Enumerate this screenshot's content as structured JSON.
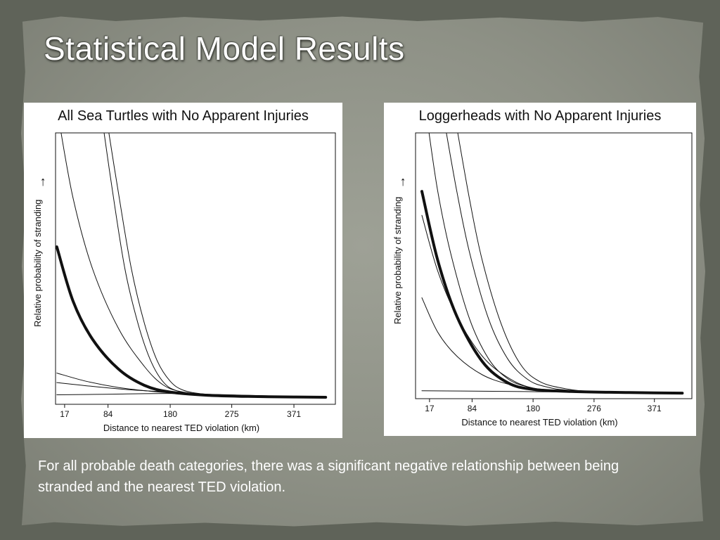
{
  "slide": {
    "title": "Statistical Model Results",
    "body_text": "For all probable death categories, there was a significant negative relationship between being stranded and the nearest TED violation."
  },
  "colors": {
    "background": "#5f6359",
    "paper": "#8e9186",
    "title_text": "#ffffff",
    "curve": "#111111"
  },
  "chart_data": [
    {
      "type": "line",
      "title": "All Sea Turtles with No Apparent Injuries",
      "xlabel": "Distance to nearest TED violation (km)",
      "ylabel": "Relative probability of stranding",
      "ylabel_arrow": "→",
      "xticks": [
        17,
        84,
        180,
        275,
        371
      ],
      "xlim": [
        3,
        435
      ],
      "ylim": [
        0,
        1
      ],
      "grid": false,
      "legend": "none",
      "series": [
        {
          "highlight": true,
          "x": [
            5,
            30,
            60,
            100,
            140,
            180,
            240,
            300,
            371,
            420
          ],
          "y": [
            0.58,
            0.38,
            0.24,
            0.13,
            0.07,
            0.045,
            0.033,
            0.029,
            0.027,
            0.026
          ]
        },
        {
          "highlight": false,
          "x": [
            8,
            30,
            60,
            100,
            140,
            170,
            200,
            240,
            300,
            371,
            420
          ],
          "y": [
            1.05,
            0.76,
            0.5,
            0.28,
            0.14,
            0.07,
            0.045,
            0.035,
            0.03,
            0.027,
            0.026
          ]
        },
        {
          "highlight": false,
          "x": [
            75,
            90,
            110,
            130,
            150,
            170,
            190,
            220,
            260,
            320,
            420
          ],
          "y": [
            1.05,
            0.8,
            0.5,
            0.3,
            0.16,
            0.08,
            0.05,
            0.038,
            0.032,
            0.028,
            0.026
          ]
        },
        {
          "highlight": false,
          "x": [
            82,
            100,
            120,
            140,
            160,
            180,
            200,
            230,
            270,
            330,
            420
          ],
          "y": [
            1.05,
            0.78,
            0.5,
            0.3,
            0.16,
            0.085,
            0.052,
            0.038,
            0.032,
            0.028,
            0.026
          ]
        },
        {
          "highlight": false,
          "x": [
            5,
            50,
            100,
            150,
            180,
            240,
            420
          ],
          "y": [
            0.115,
            0.085,
            0.062,
            0.048,
            0.042,
            0.034,
            0.026
          ]
        },
        {
          "highlight": false,
          "x": [
            5,
            60,
            120,
            180,
            240,
            420
          ],
          "y": [
            0.08,
            0.066,
            0.053,
            0.045,
            0.037,
            0.026
          ]
        },
        {
          "highlight": false,
          "x": [
            5,
            80,
            180,
            260,
            420
          ],
          "y": [
            0.035,
            0.037,
            0.04,
            0.034,
            0.026
          ]
        }
      ]
    },
    {
      "type": "line",
      "title": "Loggerheads with No Apparent Injuries",
      "xlabel": "Distance to nearest TED violation (km)",
      "ylabel": "Relative probability of stranding",
      "ylabel_arrow": "→",
      "xticks": [
        17,
        84,
        180,
        276,
        371
      ],
      "xlim": [
        -5,
        430
      ],
      "ylim": [
        0,
        1
      ],
      "grid": false,
      "legend": "none",
      "series": [
        {
          "highlight": true,
          "x": [
            5,
            30,
            60,
            100,
            140,
            180,
            240,
            300,
            371,
            415
          ],
          "y": [
            0.78,
            0.52,
            0.31,
            0.14,
            0.06,
            0.035,
            0.027,
            0.024,
            0.022,
            0.021
          ]
        },
        {
          "highlight": false,
          "x": [
            5,
            30,
            60,
            100,
            140,
            180,
            240,
            300,
            415
          ],
          "y": [
            0.69,
            0.48,
            0.31,
            0.16,
            0.08,
            0.04,
            0.03,
            0.025,
            0.021
          ]
        },
        {
          "highlight": false,
          "x": [
            5,
            30,
            60,
            100,
            140,
            180,
            240,
            300,
            415
          ],
          "y": [
            0.38,
            0.25,
            0.16,
            0.09,
            0.055,
            0.036,
            0.028,
            0.024,
            0.021
          ]
        },
        {
          "highlight": false,
          "x": [
            15,
            30,
            50,
            80,
            110,
            140,
            170,
            200,
            250,
            415
          ],
          "y": [
            1.02,
            0.78,
            0.55,
            0.3,
            0.15,
            0.075,
            0.045,
            0.033,
            0.026,
            0.021
          ]
        },
        {
          "highlight": false,
          "x": [
            42,
            60,
            80,
            110,
            140,
            170,
            200,
            250,
            415
          ],
          "y": [
            1.02,
            0.78,
            0.55,
            0.3,
            0.15,
            0.075,
            0.045,
            0.03,
            0.021
          ]
        },
        {
          "highlight": false,
          "x": [
            60,
            80,
            100,
            130,
            160,
            190,
            230,
            280,
            415
          ],
          "y": [
            1.02,
            0.75,
            0.52,
            0.28,
            0.13,
            0.065,
            0.038,
            0.027,
            0.021
          ]
        },
        {
          "highlight": false,
          "x": [
            5,
            100,
            200,
            300,
            415
          ],
          "y": [
            0.03,
            0.028,
            0.026,
            0.023,
            0.021
          ]
        }
      ]
    }
  ]
}
